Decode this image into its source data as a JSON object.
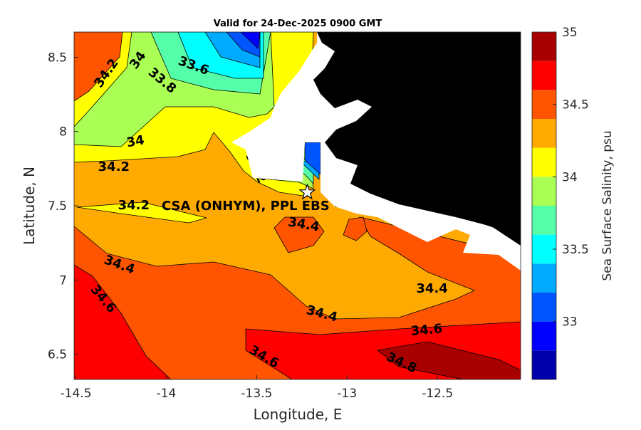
{
  "chart_data": {
    "type": "contour-map",
    "title": "Valid for 24-Dec-2025 0900 GMT",
    "xlabel": "Longitude, E",
    "ylabel": "Latitude, N",
    "xlim": [
      -14.51,
      -12.04
    ],
    "ylim": [
      6.33,
      8.67
    ],
    "xticks": [
      -14.5,
      -14,
      -13.5,
      -13,
      -12.5
    ],
    "xtick_labels": [
      "-14.5",
      "-14",
      "-13.5",
      "-13",
      "-12.5"
    ],
    "yticks": [
      6.5,
      7,
      7.5,
      8,
      8.5
    ],
    "ytick_labels": [
      "6.5",
      "7",
      "7.5",
      "8",
      "8.5"
    ],
    "colorbar": {
      "label": "Sea Surface Salinity, psu",
      "range": [
        32.6,
        35
      ],
      "step": 0.2,
      "ticks": [
        33,
        33.5,
        34,
        34.5,
        35
      ],
      "tick_labels": [
        "33",
        "33.5",
        "34",
        "34.5",
        "35"
      ],
      "colors": [
        "#0000aa",
        "#0000ff",
        "#0055ff",
        "#00aaff",
        "#00ffff",
        "#55ffaa",
        "#aaff55",
        "#ffff00",
        "#ffaa00",
        "#ff5500",
        "#ff0000",
        "#a80000"
      ]
    },
    "contour_labels": [
      {
        "text": "34.2",
        "lon": -14.29,
        "lat": 8.42
      },
      {
        "text": "34",
        "lon": -14.21,
        "lat": 8.44
      },
      {
        "text": "33.8",
        "lon": -14.04,
        "lat": 8.36
      },
      {
        "text": "33.6",
        "lon": -13.85,
        "lat": 8.44
      },
      {
        "text": "34",
        "lon": -14.17,
        "lat": 7.93
      },
      {
        "text": "34.2",
        "lon": -14.29,
        "lat": 7.76
      },
      {
        "text": "34.2",
        "lon": -14.18,
        "lat": 7.5
      },
      {
        "text": "34.2",
        "lon": -13.49,
        "lat": 7.61
      },
      {
        "text": "34.4",
        "lon": -13.24,
        "lat": 7.38
      },
      {
        "text": "34.4",
        "lon": -14.26,
        "lat": 7.1
      },
      {
        "text": "34.6",
        "lon": -14.35,
        "lat": 6.87
      },
      {
        "text": "34.4",
        "lon": -13.14,
        "lat": 6.77
      },
      {
        "text": "34.4",
        "lon": -12.53,
        "lat": 6.94
      },
      {
        "text": "34.6",
        "lon": -12.56,
        "lat": 6.66
      },
      {
        "text": "34.6",
        "lon": -13.46,
        "lat": 6.48
      },
      {
        "text": "34.8",
        "lon": -12.7,
        "lat": 6.44
      }
    ],
    "site": {
      "label": "CSA (ONHYM), PPL EBS  – Sierr",
      "lon": -13.22,
      "lat": 7.59
    }
  }
}
